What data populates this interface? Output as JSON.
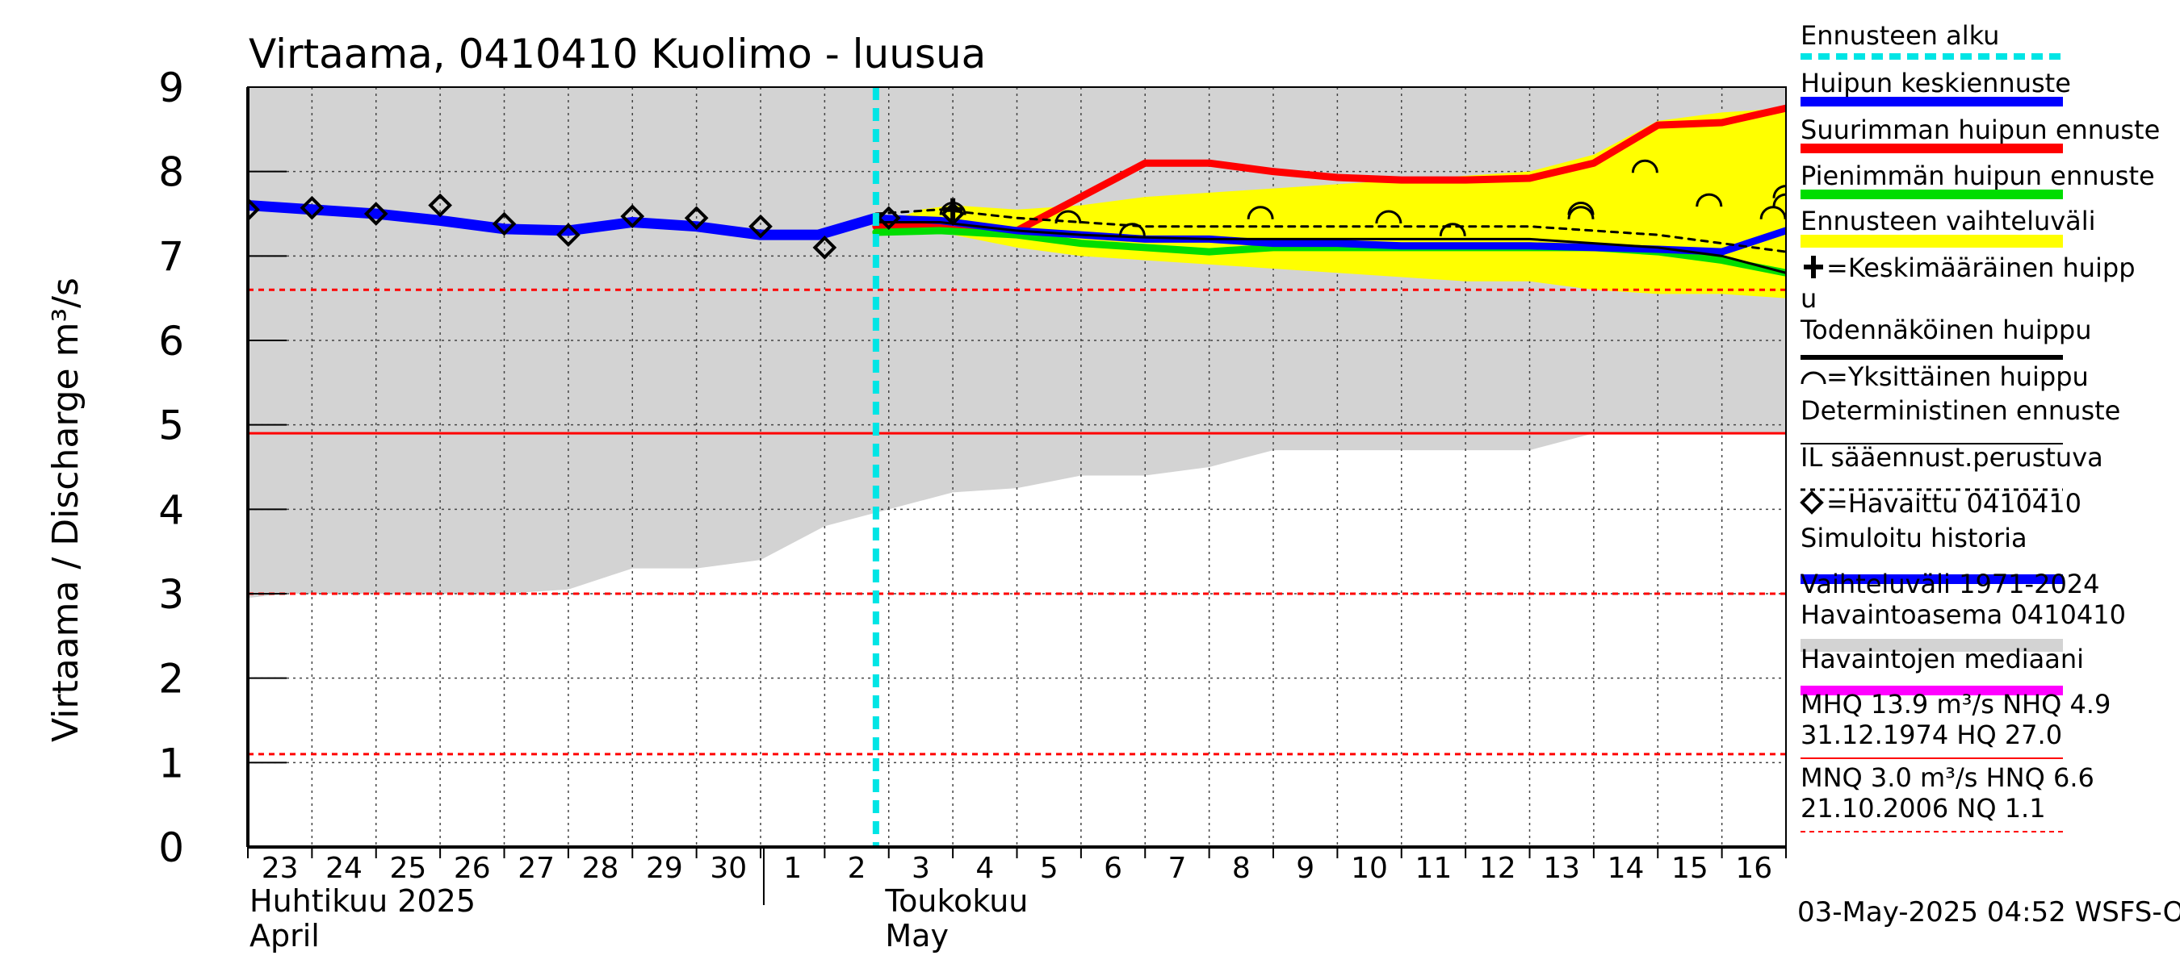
{
  "chart_data": {
    "type": "line",
    "title": "Virtaama, 0410410 Kuolimo - luusua",
    "ylabel": "Virtaama / Discharge    m³/s",
    "ylim": [
      0,
      9
    ],
    "y_ticks": [
      "0",
      "1",
      "2",
      "3",
      "4",
      "5",
      "6",
      "7",
      "8",
      "9"
    ],
    "x_day_labels": [
      "23",
      "24",
      "25",
      "26",
      "27",
      "28",
      "29",
      "30",
      "1",
      "2",
      "3",
      "4",
      "5",
      "6",
      "7",
      "8",
      "9",
      "10",
      "11",
      "12",
      "13",
      "14",
      "15",
      "16"
    ],
    "month_labels": [
      {
        "fi": "Huhtikuu  2025",
        "en": "April",
        "day_index": 0
      },
      {
        "fi": "Toukokuu",
        "en": "May",
        "day_index": 9
      }
    ],
    "forecast_start_day": 9.8,
    "reference_lines": [
      {
        "value": 6.6,
        "style": "dashed",
        "color": "#ff0000"
      },
      {
        "value": 4.9,
        "style": "solid",
        "color": "#ff0000"
      },
      {
        "value": 3.0,
        "style": "dashed",
        "color": "#ff0000"
      },
      {
        "value": 1.1,
        "style": "dashed",
        "color": "#ff0000"
      }
    ],
    "historical_range": {
      "x": [
        0,
        0.6,
        1,
        2,
        3,
        4,
        5,
        6,
        7,
        8,
        9,
        10,
        11,
        12,
        13,
        14,
        15,
        16,
        17,
        18,
        19,
        20,
        21,
        22,
        23,
        24
      ],
      "low": [
        2.95,
        3.0,
        3.0,
        3.0,
        3.0,
        3.0,
        3.05,
        3.3,
        3.3,
        3.4,
        3.8,
        4.0,
        4.2,
        4.25,
        4.4,
        4.4,
        4.5,
        4.7,
        4.7,
        4.7,
        4.7,
        4.7,
        4.9,
        4.9,
        4.9,
        4.9
      ],
      "high": [
        9,
        9,
        9,
        9,
        9,
        9,
        9,
        9,
        9,
        9,
        9,
        9,
        9,
        9,
        9,
        9,
        9,
        9,
        9,
        9,
        9,
        9,
        9,
        9,
        9,
        9
      ]
    },
    "forecast_range": {
      "x": [
        9.8,
        10.5,
        11,
        12,
        13,
        14,
        15,
        16,
        17,
        18,
        19,
        20,
        21,
        22,
        23,
        24
      ],
      "low": [
        7.25,
        7.3,
        7.25,
        7.1,
        7.0,
        6.95,
        6.9,
        6.85,
        6.8,
        6.75,
        6.7,
        6.7,
        6.6,
        6.55,
        6.55,
        6.5
      ],
      "high": [
        7.35,
        7.55,
        7.6,
        7.55,
        7.6,
        7.7,
        7.75,
        7.8,
        7.85,
        7.9,
        7.95,
        8.0,
        8.2,
        8.6,
        8.7,
        8.75
      ]
    },
    "series": [
      {
        "name": "Simuloitu historia",
        "color": "#0000ff",
        "width": 13,
        "x": [
          0,
          1,
          2,
          3,
          4,
          5,
          6,
          7,
          8,
          8.9,
          9.8
        ],
        "y": [
          7.6,
          7.55,
          7.5,
          7.42,
          7.32,
          7.3,
          7.4,
          7.35,
          7.25,
          7.25,
          7.45
        ]
      },
      {
        "name": "Suurimman huipun ennuste",
        "color": "#ff0000",
        "width": 9,
        "x": [
          9.8,
          10.8,
          12,
          13,
          14,
          15,
          16,
          17,
          18,
          19,
          20,
          21,
          22,
          23,
          24
        ],
        "y": [
          7.35,
          7.37,
          7.3,
          7.7,
          8.1,
          8.1,
          8.0,
          7.93,
          7.9,
          7.9,
          7.92,
          8.1,
          8.55,
          8.58,
          8.75
        ]
      },
      {
        "name": "Pienimmän huipun ennuste",
        "color": "#00dd00",
        "width": 9,
        "x": [
          9.8,
          10.8,
          12,
          13,
          14,
          15,
          16,
          17,
          18,
          19,
          20,
          21,
          22,
          23,
          24
        ],
        "y": [
          7.28,
          7.3,
          7.25,
          7.15,
          7.1,
          7.05,
          7.1,
          7.1,
          7.1,
          7.1,
          7.1,
          7.1,
          7.05,
          6.95,
          6.8
        ]
      },
      {
        "name": "Huipun keskiennuste",
        "color": "#0000ff",
        "width": 9,
        "x": [
          9.8,
          10.8,
          12,
          13,
          14,
          15,
          16,
          17,
          18,
          19,
          20,
          21,
          22,
          23,
          24
        ],
        "y": [
          7.45,
          7.42,
          7.3,
          7.25,
          7.2,
          7.2,
          7.15,
          7.15,
          7.12,
          7.12,
          7.12,
          7.1,
          7.08,
          7.05,
          7.3
        ]
      },
      {
        "name": "Todennäköinen huippu",
        "color": "#000000",
        "width": 3,
        "x": [
          9.8,
          10.8,
          12,
          13,
          14,
          15,
          16,
          17,
          18,
          19,
          20,
          21,
          22,
          23,
          24
        ],
        "y": [
          7.4,
          7.4,
          7.3,
          7.25,
          7.22,
          7.2,
          7.2,
          7.2,
          7.2,
          7.2,
          7.2,
          7.15,
          7.1,
          7.0,
          6.8
        ]
      },
      {
        "name": "IL sääennust.perustuva",
        "color": "#000000",
        "width": 3,
        "dashed": true,
        "x": [
          9.8,
          10.8,
          12,
          13,
          14,
          15,
          16,
          17,
          18,
          19,
          20,
          21,
          22,
          23,
          24
        ],
        "y": [
          7.5,
          7.55,
          7.45,
          7.4,
          7.35,
          7.35,
          7.35,
          7.35,
          7.35,
          7.35,
          7.35,
          7.3,
          7.25,
          7.15,
          7.05
        ]
      }
    ],
    "observed": {
      "name": "=Havaittu 0410410",
      "x": [
        0,
        1,
        2,
        3,
        4,
        5,
        6,
        7,
        8,
        9,
        10,
        11
      ],
      "y": [
        7.55,
        7.57,
        7.5,
        7.6,
        7.38,
        7.25,
        7.47,
        7.45,
        7.35,
        7.1,
        7.45,
        7.5
      ]
    },
    "single_peaks": {
      "x": [
        11,
        12.8,
        13.8,
        15.8,
        17.8,
        18.8,
        20.8,
        21.8,
        22.8,
        23.8,
        24
      ],
      "y": [
        7.6,
        7.5,
        7.35,
        7.55,
        7.5,
        7.35,
        7.55,
        8.1,
        7.7,
        7.55,
        7.8
      ]
    },
    "single_peaks_2": {
      "x": [
        20.8,
        24
      ],
      "y": [
        7.6,
        7.7
      ]
    },
    "mean_peak": {
      "x": 11,
      "y": 7.55
    },
    "legend": [
      {
        "label": "Ennusteen alku",
        "type": "dashed",
        "color": "#00e5e5"
      },
      {
        "label": "Huipun keskiennuste",
        "type": "line",
        "color": "#0000ff"
      },
      {
        "label": "Suurimman huipun ennuste",
        "type": "line",
        "color": "#ff0000"
      },
      {
        "label": "Pienimmän huipun ennuste",
        "type": "line",
        "color": "#00dd00"
      },
      {
        "label": "Ennusteen vaihteluväli",
        "type": "band",
        "color": "#ffff00"
      },
      {
        "label": "=Keskimääräinen huipp",
        "label2": "u",
        "type": "cross",
        "color": "#000000"
      },
      {
        "label": "Todennäköinen huippu",
        "type": "thinline",
        "color": "#000000"
      },
      {
        "label": "=Yksittäinen huippu",
        "type": "arc",
        "color": "#000000"
      },
      {
        "label": "Deterministinen ennuste",
        "type": "hairline",
        "color": "#000000"
      },
      {
        "label": "IL sääennust.perustuva",
        "type": "dotted",
        "color": "#000000"
      },
      {
        "label": "=Havaittu 0410410",
        "type": "diamond",
        "color": "#000000"
      },
      {
        "label": "Simuloitu historia",
        "type": "line",
        "color": "#0000ff"
      },
      {
        "label": "Vaihteluväli 1971-2024",
        "label2": " Havaintoasema 0410410",
        "type": "band",
        "color": "#d3d3d3"
      },
      {
        "label": "Havaintojen mediaani",
        "type": "line",
        "color": "#ff00ff"
      },
      {
        "label": "MHQ 13.9 m³/s NHQ  4.9",
        "label2": "31.12.1974 HQ 27.0",
        "type": "redline",
        "color": "#ff0000"
      },
      {
        "label": "MNQ  3.0 m³/s HNQ  6.6",
        "label2": "21.10.2006 NQ  1.1",
        "type": "reddash",
        "color": "#ff0000"
      }
    ],
    "timestamp": "03-May-2025 04:52 WSFS-O"
  }
}
